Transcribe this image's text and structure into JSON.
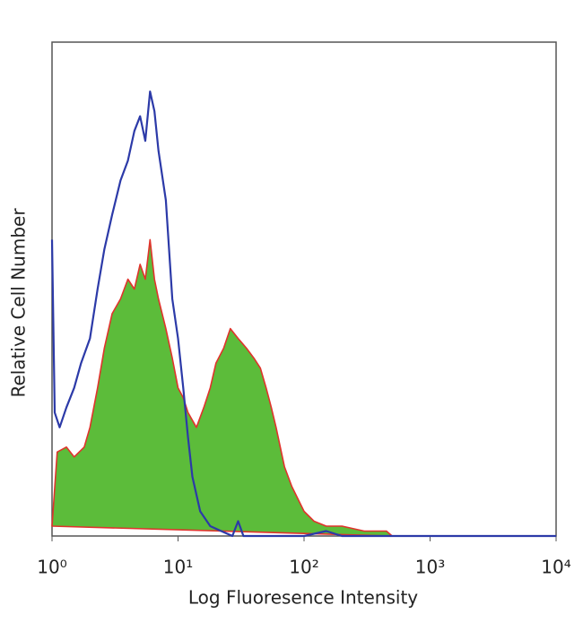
{
  "chart_data": {
    "type": "histogram-overlay",
    "xlabel": "Log Fluoresence Intensity",
    "ylabel": "Relative Cell Number",
    "xscale": "log",
    "xlim": [
      1,
      10000
    ],
    "xticks": [
      {
        "value": 1,
        "label": "10⁰"
      },
      {
        "value": 10,
        "label": "10¹"
      },
      {
        "value": 100,
        "label": "10²"
      },
      {
        "value": 1000,
        "label": "10³"
      },
      {
        "value": 10000,
        "label": "10⁴"
      }
    ],
    "ylim": [
      0,
      100
    ],
    "series": [
      {
        "fill": true,
        "color": "#5cbc3a",
        "edge_color": "#e0332c",
        "x": [
          1.0,
          1.1,
          1.3,
          1.5,
          1.8,
          2.0,
          2.3,
          2.6,
          3.0,
          3.5,
          4.0,
          4.5,
          5.0,
          5.5,
          6.0,
          6.5,
          7.0,
          8.0,
          9.0,
          10,
          11,
          12,
          14,
          16,
          18,
          20,
          23,
          26,
          30,
          35,
          40,
          45,
          50,
          55,
          60,
          70,
          80,
          100,
          120,
          150,
          200,
          300,
          450,
          500
        ],
        "values": [
          2,
          17,
          18,
          16,
          18,
          22,
          30,
          38,
          45,
          48,
          52,
          50,
          55,
          52,
          60,
          52,
          48,
          42,
          36,
          30,
          28,
          25,
          22,
          26,
          30,
          35,
          38,
          42,
          40,
          38,
          36,
          34,
          30,
          26,
          22,
          14,
          10,
          5,
          3,
          2,
          2,
          1,
          1,
          0
        ]
      },
      {
        "fill": false,
        "color": "#2c3aa8",
        "x": [
          1.0,
          1.05,
          1.15,
          1.3,
          1.5,
          1.7,
          2.0,
          2.3,
          2.6,
          3.0,
          3.5,
          4.0,
          4.5,
          5.0,
          5.5,
          6.0,
          6.5,
          7.0,
          8.0,
          9.0,
          10,
          11,
          12,
          13,
          15,
          18,
          22,
          27,
          30,
          33,
          50,
          100,
          150,
          200,
          10000
        ],
        "values": [
          60,
          25,
          22,
          26,
          30,
          35,
          40,
          50,
          58,
          65,
          72,
          76,
          82,
          85,
          80,
          90,
          86,
          78,
          68,
          48,
          40,
          30,
          20,
          12,
          5,
          2,
          1,
          0,
          3,
          0,
          0,
          0,
          1,
          0,
          0
        ]
      }
    ]
  }
}
